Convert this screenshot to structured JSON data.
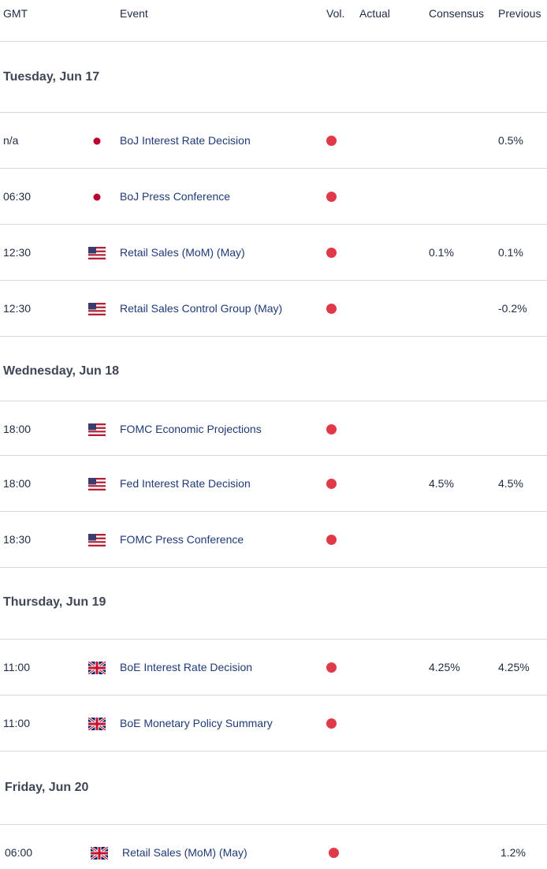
{
  "columns": {
    "gmt": "GMT",
    "event": "Event",
    "vol": "Vol.",
    "actual": "Actual",
    "consensus": "Consensus",
    "previous": "Previous"
  },
  "days": [
    {
      "label": "Tuesday, Jun 17",
      "events": [
        {
          "time": "n/a",
          "country": "JP",
          "flag_icon": "japan-flag-icon",
          "name": "BoJ Interest Rate Decision",
          "volatility": "high",
          "actual": "",
          "consensus": "",
          "previous": "0.5%"
        },
        {
          "time": "06:30",
          "country": "JP",
          "flag_icon": "japan-flag-icon",
          "name": "BoJ Press Conference",
          "volatility": "high",
          "actual": "",
          "consensus": "",
          "previous": ""
        },
        {
          "time": "12:30",
          "country": "US",
          "flag_icon": "usa-flag-icon",
          "name": "Retail Sales (MoM) (May)",
          "volatility": "high",
          "actual": "",
          "consensus": "0.1%",
          "previous": "0.1%"
        },
        {
          "time": "12:30",
          "country": "US",
          "flag_icon": "usa-flag-icon",
          "name": "Retail Sales Control Group (May)",
          "volatility": "high",
          "actual": "",
          "consensus": "",
          "previous": "-0.2%"
        }
      ]
    },
    {
      "label": "Wednesday, Jun 18",
      "events": [
        {
          "time": "18:00",
          "country": "US",
          "flag_icon": "usa-flag-icon",
          "name": "FOMC Economic Projections",
          "volatility": "high",
          "actual": "",
          "consensus": "",
          "previous": ""
        },
        {
          "time": "18:00",
          "country": "US",
          "flag_icon": "usa-flag-icon",
          "name": "Fed Interest Rate Decision",
          "volatility": "high",
          "actual": "",
          "consensus": "4.5%",
          "previous": "4.5%"
        },
        {
          "time": "18:30",
          "country": "US",
          "flag_icon": "usa-flag-icon",
          "name": "FOMC Press Conference",
          "volatility": "high",
          "actual": "",
          "consensus": "",
          "previous": ""
        }
      ]
    },
    {
      "label": "Thursday, Jun 19",
      "events": [
        {
          "time": "11:00",
          "country": "GB",
          "flag_icon": "uk-flag-icon",
          "name": "BoE Interest Rate Decision",
          "volatility": "high",
          "actual": "",
          "consensus": "4.25%",
          "previous": "4.25%"
        },
        {
          "time": "11:00",
          "country": "GB",
          "flag_icon": "uk-flag-icon",
          "name": "BoE Monetary Policy Summary",
          "volatility": "high",
          "actual": "",
          "consensus": "",
          "previous": ""
        }
      ]
    },
    {
      "label": "Friday, Jun 20",
      "events": [
        {
          "time": "06:00",
          "country": "GB",
          "flag_icon": "uk-flag-icon",
          "name": "Retail Sales (MoM) (May)",
          "volatility": "high",
          "actual": "",
          "consensus": "",
          "previous": "1.2%"
        }
      ]
    }
  ],
  "colors": {
    "volatility_high": "#e0394a",
    "event_text": "#1f3a78",
    "divider": "#d8d8d8"
  }
}
